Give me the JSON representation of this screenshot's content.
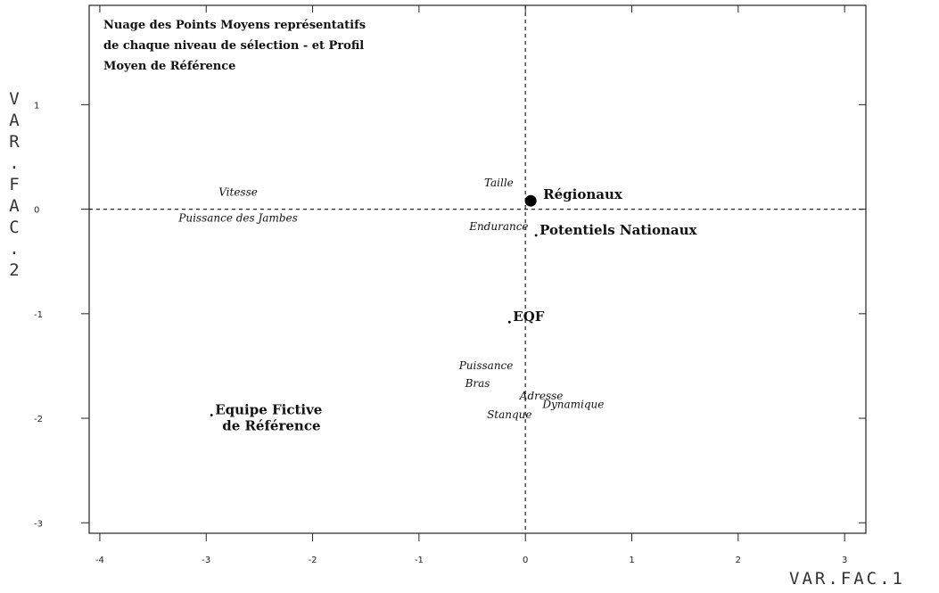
{
  "chart_data": {
    "type": "scatter",
    "title_lines": [
      "Nuage des Points Moyens représentatifs",
      "de chaque niveau de sélection - et Profil",
      "Moyen de Référence"
    ],
    "xlabel": "VAR.FAC.1",
    "ylabel": "VAR.FAC.2",
    "xlim": [
      -4.1,
      3.2
    ],
    "ylim": [
      -3.1,
      1.95
    ],
    "x_ticks": [
      -4,
      -3,
      -2,
      -1,
      0,
      1,
      2,
      3
    ],
    "y_ticks": [
      1,
      0,
      -1,
      -2,
      -3
    ],
    "points": [
      {
        "name": "Régionaux",
        "x": 0.05,
        "y": 0.08,
        "marker": "large-dot"
      },
      {
        "name": "Potentiels Nationaux",
        "x": 0.1,
        "y": -0.25,
        "marker": "small-dot"
      },
      {
        "name": "EQF",
        "x": -0.15,
        "y": -1.08,
        "marker": "small-dot"
      },
      {
        "name": "Equipe Fictive",
        "name2": "de Référence",
        "x": -2.95,
        "y": -1.97,
        "marker": "small-dot"
      }
    ],
    "variables": [
      {
        "name": "Vitesse",
        "x": -2.7,
        "y": 0.13
      },
      {
        "name": "Puissance des Jambes",
        "x": -2.7,
        "y": -0.12
      },
      {
        "name": "Taille",
        "x": -0.25,
        "y": 0.22
      },
      {
        "name": "Endurance",
        "x": -0.25,
        "y": -0.2
      },
      {
        "name": "Puissance",
        "x": -0.37,
        "y": -1.53
      },
      {
        "name": "Bras",
        "x": -0.45,
        "y": -1.7
      },
      {
        "name": "Adresse",
        "x": 0.15,
        "y": -1.82
      },
      {
        "name": "Dynamique",
        "x": 0.45,
        "y": -1.9
      },
      {
        "name": "Stanque",
        "x": -0.15,
        "y": -2.0
      }
    ],
    "grid": false,
    "reference_lines": {
      "x": 0,
      "y": 0,
      "style": "dashed"
    }
  }
}
